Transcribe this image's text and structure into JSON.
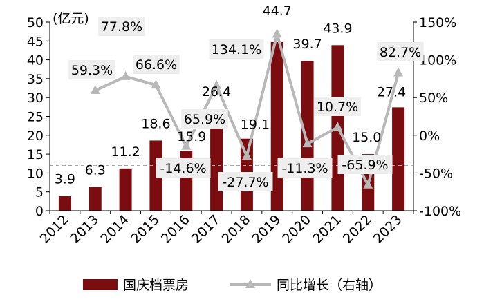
{
  "chart_data": {
    "type": "bar",
    "categories": [
      "2012",
      "2013",
      "2014",
      "2015",
      "2016",
      "2017",
      "2018",
      "2019",
      "2020",
      "2021",
      "2022",
      "2023"
    ],
    "unit_label": "(亿元)",
    "series": [
      {
        "name": "国庆档票房",
        "type": "bar",
        "axis": "left",
        "values": [
          3.9,
          6.3,
          11.2,
          18.6,
          15.9,
          26.4,
          19.1,
          44.7,
          39.7,
          43.9,
          15.0,
          27.4
        ],
        "labels": [
          "3.9",
          "6.3",
          "11.2",
          "18.6",
          "15.9",
          "26.4",
          "19.1",
          "44.7",
          "39.7",
          "43.9",
          "15.0",
          "27.4"
        ]
      },
      {
        "name": "同比增长（右轴）",
        "type": "line",
        "axis": "right",
        "values": [
          null,
          59.3,
          77.8,
          66.6,
          -14.6,
          65.9,
          -27.7,
          134.1,
          -11.3,
          10.7,
          -65.9,
          82.7
        ],
        "labels": [
          "",
          "59.3%",
          "77.8%",
          "66.6%",
          "-14.6%",
          "65.9%",
          "-27.7%",
          "134.1%",
          "-11.3%",
          "10.7%",
          "-65.9%",
          "82.7%"
        ]
      }
    ],
    "y_left": {
      "min": 0,
      "max": 50,
      "ticks": [
        0,
        5,
        10,
        15,
        20,
        25,
        30,
        35,
        40,
        45,
        50
      ]
    },
    "y_right": {
      "min": -100,
      "max": 150,
      "ticks": [
        -100,
        -50,
        0,
        50,
        100,
        150
      ],
      "tick_labels": [
        "-100%",
        "-50%",
        "0%",
        "50%",
        "100%",
        "150%"
      ]
    },
    "reference_line": {
      "axis": "right",
      "value": -40
    },
    "colors": {
      "bar": "#7b0c10",
      "line": "#b8b8b8",
      "label_bg": "#eeeeee",
      "axis": "#000000"
    },
    "grid": false,
    "legend_placement": "bottom"
  }
}
